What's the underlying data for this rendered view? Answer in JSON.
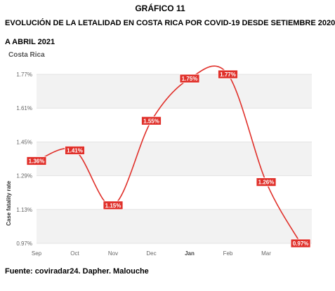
{
  "figure": {
    "label": "GRÁFICO 11",
    "heading_line1": "EVOLUCIÓN DE LA LETALIDAD EN COSTA RICA POR COVID-19 DESDE SETIEMBRE 2020",
    "heading_line2": "A ABRIL 2021",
    "source": "Fuente: coviradar24. Dapher. Malouche"
  },
  "colors": {
    "line": "#e0302a",
    "label_bg": "#e0302a",
    "band_shaded": "#f2f2f2",
    "grid": "#e3e3e3"
  },
  "chart_data": {
    "type": "line",
    "subtitle": "Costa Rica",
    "ylabel": "Case fatality rate",
    "categories": [
      "Sep",
      "Oct",
      "Nov",
      "Dec",
      "Jan",
      "Feb",
      "Mar"
    ],
    "bold_categories": [
      "Jan"
    ],
    "y_ticks": [
      "0.97%",
      "1.13%",
      "1.29%",
      "1.45%",
      "1.61%",
      "1.77%"
    ],
    "ylim": [
      0.97,
      1.77
    ],
    "grid": true,
    "series": [
      {
        "x": [
          0,
          1,
          2,
          3,
          4,
          5,
          6,
          6.9
        ],
        "values": [
          1.36,
          1.41,
          1.15,
          1.55,
          1.75,
          1.77,
          1.26,
          0.97
        ],
        "labels": [
          "1.36%",
          "1.41%",
          "1.15%",
          "1.55%",
          "1.75%",
          "1.77%",
          "1.26%",
          "0.97%"
        ]
      }
    ]
  }
}
